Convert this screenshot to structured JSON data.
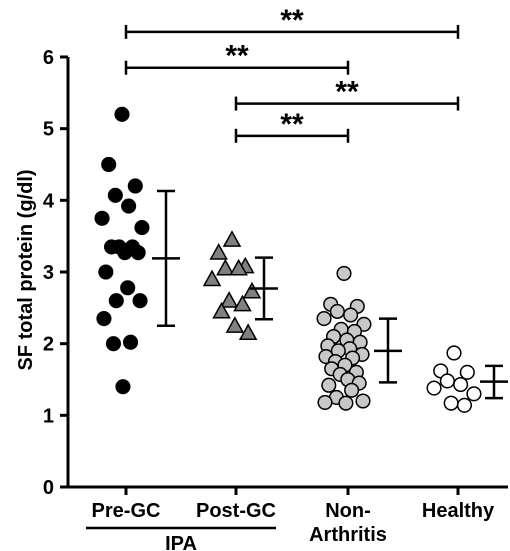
{
  "chart_data": {
    "type": "scatter",
    "ylabel": "SF total protein (g/dl)",
    "ylim": [
      0,
      6
    ],
    "yticks": [
      "0",
      "1",
      "2",
      "3",
      "4",
      "5",
      "6"
    ],
    "categories": [
      {
        "label": "Pre-GC"
      },
      {
        "label": "Post-GC"
      },
      {
        "label": "Non-\nArthritis"
      },
      {
        "label": "Healthy"
      }
    ],
    "group_label": "IPA",
    "series": [
      {
        "category": "Pre-GC",
        "marker": "circle",
        "fill": "#000000",
        "values": [
          5.2,
          4.5,
          4.2,
          4.07,
          3.92,
          3.75,
          3.62,
          3.35,
          3.35,
          3.35,
          3.27,
          3.27,
          3.0,
          2.78,
          2.6,
          2.6,
          2.35,
          2.02,
          2.0,
          1.4
        ],
        "error_bar": {
          "mean": 3.19,
          "low": 2.25,
          "high": 4.13
        }
      },
      {
        "category": "Post-GC",
        "marker": "triangle",
        "fill": "#808080",
        "values": [
          3.45,
          3.27,
          3.08,
          3.05,
          3.05,
          2.9,
          2.73,
          2.6,
          2.55,
          2.45,
          2.25,
          2.15
        ],
        "error_bar": {
          "mean": 2.77,
          "low": 2.34,
          "high": 3.2
        }
      },
      {
        "category": "Non-Arthritis",
        "marker": "circle",
        "fill": "#c8c8c8",
        "values": [
          2.98,
          2.55,
          2.52,
          2.45,
          2.4,
          2.35,
          2.27,
          2.2,
          2.17,
          2.1,
          2.05,
          2.02,
          1.97,
          1.93,
          1.9,
          1.85,
          1.82,
          1.8,
          1.75,
          1.7,
          1.65,
          1.6,
          1.57,
          1.5,
          1.45,
          1.42,
          1.35,
          1.25,
          1.2,
          1.18,
          1.17
        ],
        "error_bar": {
          "mean": 1.9,
          "low": 1.46,
          "high": 2.35
        }
      },
      {
        "category": "Healthy",
        "marker": "circle",
        "fill": "#ffffff",
        "values": [
          1.87,
          1.62,
          1.6,
          1.48,
          1.43,
          1.38,
          1.3,
          1.17,
          1.14
        ],
        "error_bar": {
          "mean": 1.47,
          "low": 1.24,
          "high": 1.69
        }
      }
    ],
    "significance": [
      {
        "from": "Pre-GC",
        "to": "Healthy",
        "label": "**",
        "y": 6.35
      },
      {
        "from": "Pre-GC",
        "to": "Non-Arthritis",
        "label": "**",
        "y": 5.85
      },
      {
        "from": "Post-GC",
        "to": "Healthy",
        "label": "**",
        "y": 5.35
      },
      {
        "from": "Post-GC",
        "to": "Non-Arthritis",
        "label": "**",
        "y": 4.9
      }
    ]
  }
}
